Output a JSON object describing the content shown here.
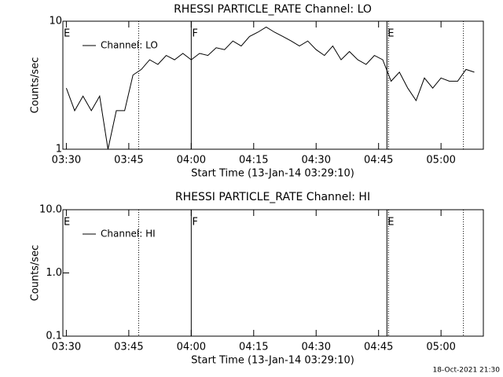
{
  "chart_data": [
    {
      "type": "line",
      "title": "RHESSI PARTICLE_RATE Channel: LO",
      "x_label": "Start Time (13-Jan-14 03:29:10)",
      "y_label": "Counts/sec",
      "log_y": true,
      "xlim": [
        "03:29:10",
        "05:10:10"
      ],
      "ylim": [
        1,
        10
      ],
      "yticks": [
        1,
        10
      ],
      "xticks": [
        "03:30",
        "03:45",
        "04:00",
        "04:15",
        "04:30",
        "04:45",
        "05:00"
      ],
      "flags": [
        {
          "x": "03:29:10",
          "label": "E"
        },
        {
          "x": "04:00",
          "label": "F"
        },
        {
          "x": "04:47",
          "label": "E"
        }
      ],
      "solid_lines": [
        "04:00",
        "04:47"
      ],
      "dotted_lines": [
        "03:47",
        "04:47",
        "05:05"
      ],
      "x": [
        "03:30",
        "03:32",
        "03:34",
        "03:36",
        "03:38",
        "03:40",
        "03:42",
        "03:44",
        "03:46",
        "03:48",
        "03:50",
        "03:52",
        "03:54",
        "03:56",
        "03:58",
        "04:00",
        "04:02",
        "04:04",
        "04:06",
        "04:08",
        "04:10",
        "04:12",
        "04:14",
        "04:16",
        "04:18",
        "04:20",
        "04:22",
        "04:24",
        "04:26",
        "04:28",
        "04:30",
        "04:32",
        "04:34",
        "04:36",
        "04:38",
        "04:40",
        "04:42",
        "04:44",
        "04:46",
        "04:48",
        "04:50",
        "04:52",
        "04:54",
        "04:56",
        "04:58",
        "05:00",
        "05:02",
        "05:04",
        "05:06",
        "05:08"
      ],
      "series": [
        {
          "name": "Channel: LO",
          "color": "#000000",
          "values": [
            3.0,
            2.0,
            2.6,
            2.0,
            2.6,
            1.0,
            2.0,
            2.0,
            3.8,
            4.2,
            5.0,
            4.6,
            5.4,
            5.0,
            5.6,
            5.0,
            5.6,
            5.4,
            6.2,
            6.0,
            7.0,
            6.4,
            7.6,
            8.2,
            9.0,
            8.2,
            7.6,
            7.0,
            6.4,
            7.0,
            6.0,
            5.4,
            6.4,
            5.0,
            5.8,
            5.0,
            4.6,
            5.4,
            5.0,
            3.4,
            4.0,
            3.0,
            2.4,
            3.6,
            3.0,
            3.6,
            3.4,
            3.4,
            4.2,
            4.0
          ]
        }
      ]
    },
    {
      "type": "line",
      "title": "RHESSI PARTICLE_RATE Channel: HI",
      "x_label": "Start Time (13-Jan-14 03:29:10)",
      "y_label": "Counts/sec",
      "log_y": true,
      "xlim": [
        "03:29:10",
        "05:10:10"
      ],
      "ylim": [
        0.1,
        10
      ],
      "yticks": [
        0.1,
        {
          "value": 1,
          "label": "1.0"
        },
        {
          "value": 10,
          "label": "10.0"
        }
      ],
      "xticks": [
        "03:30",
        "03:45",
        "04:00",
        "04:15",
        "04:30",
        "04:45",
        "05:00"
      ],
      "flags": [
        {
          "x": "03:29:10",
          "label": "E"
        },
        {
          "x": "04:00",
          "label": "F"
        },
        {
          "x": "04:47",
          "label": "E"
        }
      ],
      "solid_lines": [
        "04:00",
        "04:47"
      ],
      "dotted_lines": [
        "03:47",
        "04:47",
        "05:05"
      ],
      "x": [],
      "series": [
        {
          "name": "Channel: HI",
          "color": "#000000",
          "values": []
        }
      ]
    }
  ],
  "footer": "18-Oct-2021 21:30"
}
